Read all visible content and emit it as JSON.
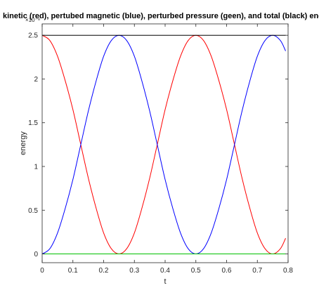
{
  "chart_data": {
    "type": "line",
    "title": "kinetic (red), pertubed magnetic (blue), perturbed pressure (geen), and total (black) energy",
    "xlabel": "t",
    "ylabel": "energy",
    "y_exponent_label": "×10⁻⁸",
    "xlim": [
      0,
      0.8
    ],
    "ylim": [
      -0.1,
      2.63
    ],
    "x_ticks": [
      0,
      0.1,
      0.2,
      0.3,
      0.4,
      0.5,
      0.6,
      0.7,
      0.8
    ],
    "x_tick_labels": [
      "0",
      "0.1",
      "0.2",
      "0.3",
      "0.4",
      "0.5",
      "0.6",
      "0.7",
      "0.8"
    ],
    "y_ticks": [
      0,
      0.5,
      1,
      1.5,
      2,
      2.5
    ],
    "y_tick_labels": [
      "0",
      "0.5",
      "1",
      "1.5",
      "2",
      "2.5"
    ],
    "grid": false,
    "box": true,
    "series": [
      {
        "color": "#ff0000",
        "x": [
          0,
          0.025,
          0.05,
          0.075,
          0.1,
          0.125,
          0.15,
          0.175,
          0.2,
          0.225,
          0.25,
          0.275,
          0.3,
          0.325,
          0.35,
          0.375,
          0.4,
          0.425,
          0.45,
          0.475,
          0.5,
          0.525,
          0.55,
          0.575,
          0.6,
          0.625,
          0.65,
          0.675,
          0.7,
          0.725,
          0.75,
          0.775,
          0.792
        ],
        "values": [
          2.5,
          2.44,
          2.26,
          1.98,
          1.65,
          1.26,
          0.87,
          0.53,
          0.24,
          0.06,
          0.0,
          0.06,
          0.24,
          0.53,
          0.87,
          1.26,
          1.65,
          1.98,
          2.26,
          2.44,
          2.5,
          2.44,
          2.26,
          1.98,
          1.65,
          1.26,
          0.87,
          0.53,
          0.24,
          0.06,
          0.0,
          0.06,
          0.18
        ]
      },
      {
        "color": "#0000ff",
        "x": [
          0,
          0.025,
          0.05,
          0.075,
          0.1,
          0.125,
          0.15,
          0.175,
          0.2,
          0.225,
          0.25,
          0.275,
          0.3,
          0.325,
          0.35,
          0.375,
          0.4,
          0.425,
          0.45,
          0.475,
          0.5,
          0.525,
          0.55,
          0.575,
          0.6,
          0.625,
          0.65,
          0.675,
          0.7,
          0.725,
          0.75,
          0.775,
          0.792
        ],
        "values": [
          0.0,
          0.06,
          0.24,
          0.52,
          0.85,
          1.24,
          1.63,
          1.97,
          2.26,
          2.44,
          2.5,
          2.44,
          2.26,
          1.97,
          1.63,
          1.24,
          0.85,
          0.52,
          0.24,
          0.06,
          0.0,
          0.06,
          0.24,
          0.52,
          0.85,
          1.24,
          1.63,
          1.97,
          2.26,
          2.44,
          2.5,
          2.44,
          2.32
        ]
      },
      {
        "color": "#00c000",
        "x": [
          0,
          0.792
        ],
        "values": [
          0,
          0
        ]
      },
      {
        "color": "#000000",
        "x": [
          0,
          0.792
        ],
        "values": [
          2.5,
          2.5
        ]
      }
    ]
  }
}
